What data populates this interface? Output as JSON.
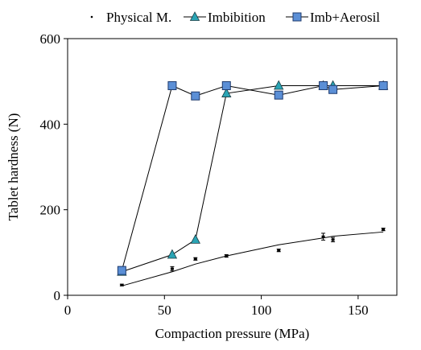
{
  "chart_data": {
    "type": "line",
    "xlabel": "Compaction pressure (MPa)",
    "ylabel": "Tablet hardness (N)",
    "xlim": [
      0,
      170
    ],
    "ylim": [
      0,
      600
    ],
    "xticks": [
      0,
      50,
      100,
      150
    ],
    "yticks": [
      0,
      200,
      400,
      600
    ],
    "grid": false,
    "legend_position": "top",
    "series": [
      {
        "name": "Physical M.",
        "marker": "point",
        "color": "#000000",
        "x": [
          28,
          54,
          66,
          82,
          109,
          132,
          137,
          163
        ],
        "y": [
          24,
          62,
          85,
          92,
          105,
          137,
          130,
          154
        ],
        "error": [
          2,
          5,
          3,
          3,
          3,
          8,
          5,
          3
        ],
        "trend": {
          "x": [
            28,
            54,
            66,
            82,
            109,
            132,
            137,
            163
          ],
          "y": [
            22,
            55,
            73,
            92,
            118,
            134,
            138,
            148
          ]
        }
      },
      {
        "name": "Imbibition",
        "marker": "triangle",
        "color": "#2aa4b4",
        "x": [
          28,
          54,
          66,
          82,
          109,
          132,
          137,
          163
        ],
        "y": [
          55,
          95,
          130,
          472,
          490,
          490,
          490,
          490
        ]
      },
      {
        "name": "Imb+Aerosil",
        "marker": "square",
        "color": "#5b8fd6",
        "x": [
          28,
          54,
          66,
          82,
          109,
          132,
          137,
          163
        ],
        "y": [
          58,
          490,
          466,
          490,
          468,
          490,
          481,
          490
        ]
      }
    ]
  }
}
